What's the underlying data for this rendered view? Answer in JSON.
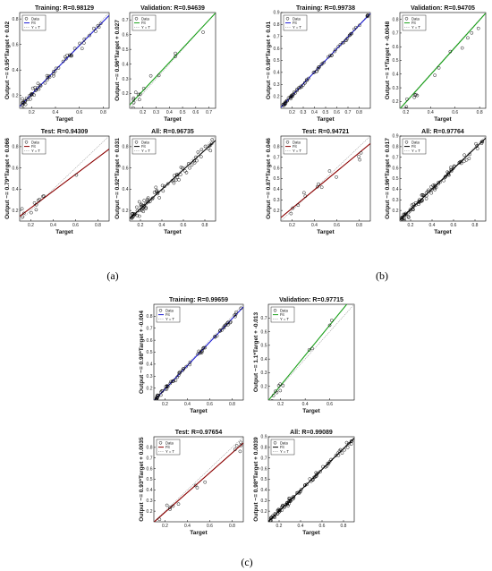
{
  "figure_labels": [
    "(a)",
    "(b)",
    "(c)"
  ],
  "colors": {
    "training": "#1a1ad4",
    "validation": "#1aa01a",
    "test": "#8b0000",
    "all": "#000000",
    "identity": "#9a9a9a",
    "data_marker": "#000000"
  },
  "chart_data": [
    {
      "id": "a-training",
      "group": "(a)",
      "type": "scatter",
      "title": "Training: R=0.98129",
      "xlabel": "Target",
      "ylabel": "Output ~= 0.95*Target + 0.02",
      "fit_color": "#1a1ad4",
      "fit": {
        "slope": 0.95,
        "intercept": 0.02
      },
      "xlim": [
        0.1,
        0.85
      ],
      "ylim": [
        0.1,
        0.85
      ],
      "xticks": [
        "0.2",
        "0.4",
        "0.6",
        "0.8"
      ],
      "yticks": [
        "0.2",
        "0.4",
        "0.6",
        "0.8"
      ],
      "legend": [
        "Data",
        "Fit",
        "Y = T"
      ],
      "n_points": 60,
      "point_range": [
        0.12,
        0.8
      ],
      "noise": 0.025,
      "seed": 11
    },
    {
      "id": "a-validation",
      "group": "(a)",
      "type": "scatter",
      "title": "Validation: R=0.94639",
      "xlabel": "Target",
      "ylabel": "Output ~= 0.96*Target + 0.027",
      "fit_color": "#1aa01a",
      "fit": {
        "slope": 0.96,
        "intercept": 0.027
      },
      "xlim": [
        0.1,
        0.75
      ],
      "ylim": [
        0.1,
        0.75
      ],
      "xticks": [
        "0.2",
        "0.3",
        "0.4",
        "0.5",
        "0.6",
        "0.7"
      ],
      "yticks": [
        "0.2",
        "0.3",
        "0.4",
        "0.5",
        "0.6",
        "0.7"
      ],
      "legend": [
        "Data",
        "Fit",
        "Y = T"
      ],
      "n_points": 14,
      "point_range": [
        0.12,
        0.68
      ],
      "noise": 0.045,
      "seed": 23
    },
    {
      "id": "a-test",
      "group": "(a)",
      "type": "scatter",
      "title": "Test: R=0.94309",
      "xlabel": "Target",
      "ylabel": "Output ~= 0.79*Target + 0.066",
      "fit_color": "#8b0000",
      "fit": {
        "slope": 0.79,
        "intercept": 0.066
      },
      "xlim": [
        0.1,
        0.9
      ],
      "ylim": [
        0.1,
        0.9
      ],
      "xticks": [
        "0.2",
        "0.4",
        "0.6",
        "0.8"
      ],
      "yticks": [
        "0.2",
        "0.4",
        "0.6",
        "0.8"
      ],
      "legend": [
        "Data",
        "Fit",
        "Y = T"
      ],
      "n_points": 12,
      "point_range": [
        0.12,
        0.88
      ],
      "noise": 0.05,
      "seed": 37
    },
    {
      "id": "a-all",
      "group": "(a)",
      "type": "scatter",
      "title": "All: R=0.96735",
      "xlabel": "Target",
      "ylabel": "Output ~= 0.92*Target + 0.031",
      "fit_color": "#000000",
      "fit": {
        "slope": 0.92,
        "intercept": 0.031
      },
      "xlim": [
        0.1,
        0.9
      ],
      "ylim": [
        0.1,
        0.9
      ],
      "xticks": [
        "0.2",
        "0.4",
        "0.6",
        "0.8"
      ],
      "yticks": [
        "0.2",
        "0.4",
        "0.6",
        "0.8"
      ],
      "legend": [
        "Data",
        "Fit",
        "Y = T"
      ],
      "n_points": 80,
      "point_range": [
        0.12,
        0.88
      ],
      "noise": 0.04,
      "seed": 41
    },
    {
      "id": "b-training",
      "group": "(b)",
      "type": "scatter",
      "title": "Training: R=0.99738",
      "xlabel": "Target",
      "ylabel": "Output ~= 0.98*Target + 0.01",
      "fit_color": "#1a1ad4",
      "fit": {
        "slope": 0.98,
        "intercept": 0.01
      },
      "xlim": [
        0.1,
        0.9
      ],
      "ylim": [
        0.1,
        0.9
      ],
      "xticks": [
        "0.2",
        "0.3",
        "0.4",
        "0.5",
        "0.6",
        "0.7",
        "0.8"
      ],
      "yticks": [
        "0.2",
        "0.3",
        "0.4",
        "0.5",
        "0.6",
        "0.7",
        "0.8",
        "0.9"
      ],
      "legend": [
        "Data",
        "Fit",
        "Y = T"
      ],
      "n_points": 70,
      "point_range": [
        0.12,
        0.88
      ],
      "noise": 0.01,
      "seed": 53
    },
    {
      "id": "b-validation",
      "group": "(b)",
      "type": "scatter",
      "title": "Validation: R=0.94705",
      "xlabel": "Target",
      "ylabel": "Output ~= 1*Target + -0.0048",
      "fit_color": "#1aa01a",
      "fit": {
        "slope": 1.0,
        "intercept": -0.0048
      },
      "xlim": [
        0.15,
        0.85
      ],
      "ylim": [
        0.15,
        0.85
      ],
      "xticks": [
        "0.2",
        "0.4",
        "0.6",
        "0.8"
      ],
      "yticks": [
        "0.2",
        "0.3",
        "0.4",
        "0.5",
        "0.6",
        "0.7",
        "0.8"
      ],
      "legend": [
        "Data",
        "Fit",
        "Y = T"
      ],
      "n_points": 14,
      "point_range": [
        0.2,
        0.82
      ],
      "noise": 0.05,
      "seed": 67
    },
    {
      "id": "b-test",
      "group": "(b)",
      "type": "scatter",
      "title": "Test: R=0.94721",
      "xlabel": "Target",
      "ylabel": "Output ~= 0.87*Target + 0.046",
      "fit_color": "#8b0000",
      "fit": {
        "slope": 0.87,
        "intercept": 0.046
      },
      "xlim": [
        0.1,
        0.9
      ],
      "ylim": [
        0.1,
        0.9
      ],
      "xticks": [
        "0.2",
        "0.4",
        "0.6",
        "0.8"
      ],
      "yticks": [
        "0.2",
        "0.3",
        "0.4",
        "0.5",
        "0.6",
        "0.7",
        "0.8"
      ],
      "legend": [
        "Data",
        "Fit",
        "Y = T"
      ],
      "n_points": 13,
      "point_range": [
        0.12,
        0.85
      ],
      "noise": 0.05,
      "seed": 71
    },
    {
      "id": "b-all",
      "group": "(b)",
      "type": "scatter",
      "title": "All: R=0.97764",
      "xlabel": "Target",
      "ylabel": "Output ~= 0.96*Target + 0.017",
      "fit_color": "#000000",
      "fit": {
        "slope": 0.96,
        "intercept": 0.017
      },
      "xlim": [
        0.1,
        0.9
      ],
      "ylim": [
        0.1,
        0.9
      ],
      "xticks": [
        "0.2",
        "0.4",
        "0.6",
        "0.8"
      ],
      "yticks": [
        "0.2",
        "0.3",
        "0.4",
        "0.5",
        "0.6",
        "0.7",
        "0.8",
        "0.9"
      ],
      "legend": [
        "Data",
        "Fit",
        "Y = T"
      ],
      "n_points": 90,
      "point_range": [
        0.12,
        0.88
      ],
      "noise": 0.03,
      "seed": 83
    },
    {
      "id": "c-training",
      "group": "(c)",
      "type": "scatter",
      "title": "Training: R=0.99659",
      "xlabel": "Target",
      "ylabel": "Output ~= 0.98*Target + -0.004",
      "fit_color": "#1a1ad4",
      "fit": {
        "slope": 0.98,
        "intercept": -0.004
      },
      "xlim": [
        0.1,
        0.9
      ],
      "ylim": [
        0.1,
        0.9
      ],
      "xticks": [
        "0.2",
        "0.4",
        "0.6",
        "0.8"
      ],
      "yticks": [
        "0.2",
        "0.3",
        "0.4",
        "0.5",
        "0.6",
        "0.7",
        "0.8"
      ],
      "legend": [
        "Data",
        "Fit",
        "Y = T"
      ],
      "n_points": 70,
      "point_range": [
        0.12,
        0.88
      ],
      "noise": 0.012,
      "seed": 97
    },
    {
      "id": "c-validation",
      "group": "(c)",
      "type": "scatter",
      "title": "Validation: R=0.97715",
      "xlabel": "Target",
      "ylabel": "Output ~= 1.1*Target + -0.013",
      "fit_color": "#1aa01a",
      "fit": {
        "slope": 1.1,
        "intercept": -0.013
      },
      "xlim": [
        0.1,
        0.8
      ],
      "ylim": [
        0.1,
        0.8
      ],
      "xticks": [
        "0.2",
        "0.4",
        "0.6"
      ],
      "yticks": [
        "0.2",
        "0.3",
        "0.4",
        "0.5",
        "0.6",
        "0.7"
      ],
      "legend": [
        "Data",
        "Fit",
        "Y = T"
      ],
      "n_points": 12,
      "point_range": [
        0.12,
        0.72
      ],
      "noise": 0.03,
      "seed": 101
    },
    {
      "id": "c-test",
      "group": "(c)",
      "type": "scatter",
      "title": "Test: R=0.97654",
      "xlabel": "Target",
      "ylabel": "Output ~= 0.93*Target + 0.0035",
      "fit_color": "#8b0000",
      "fit": {
        "slope": 0.93,
        "intercept": 0.0035
      },
      "xlim": [
        0.1,
        0.9
      ],
      "ylim": [
        0.1,
        0.9
      ],
      "xticks": [
        "0.2",
        "0.4",
        "0.6",
        "0.8"
      ],
      "yticks": [
        "0.2",
        "0.3",
        "0.4",
        "0.5",
        "0.6",
        "0.7",
        "0.8"
      ],
      "legend": [
        "Data",
        "Fit",
        "Y = T"
      ],
      "n_points": 14,
      "point_range": [
        0.15,
        0.88
      ],
      "noise": 0.03,
      "seed": 113
    },
    {
      "id": "c-all",
      "group": "(c)",
      "type": "scatter",
      "title": "All: R=0.99089",
      "xlabel": "Target",
      "ylabel": "Output ~= 0.98*Target + 0.0039",
      "fit_color": "#000000",
      "fit": {
        "slope": 0.98,
        "intercept": 0.0039
      },
      "xlim": [
        0.1,
        0.9
      ],
      "ylim": [
        0.1,
        0.9
      ],
      "xticks": [
        "0.2",
        "0.4",
        "0.6",
        "0.8"
      ],
      "yticks": [
        "0.2",
        "0.3",
        "0.4",
        "0.5",
        "0.6",
        "0.7",
        "0.8",
        "0.9"
      ],
      "legend": [
        "Data",
        "Fit",
        "Y = T"
      ],
      "n_points": 90,
      "point_range": [
        0.12,
        0.88
      ],
      "noise": 0.02,
      "seed": 127
    }
  ]
}
